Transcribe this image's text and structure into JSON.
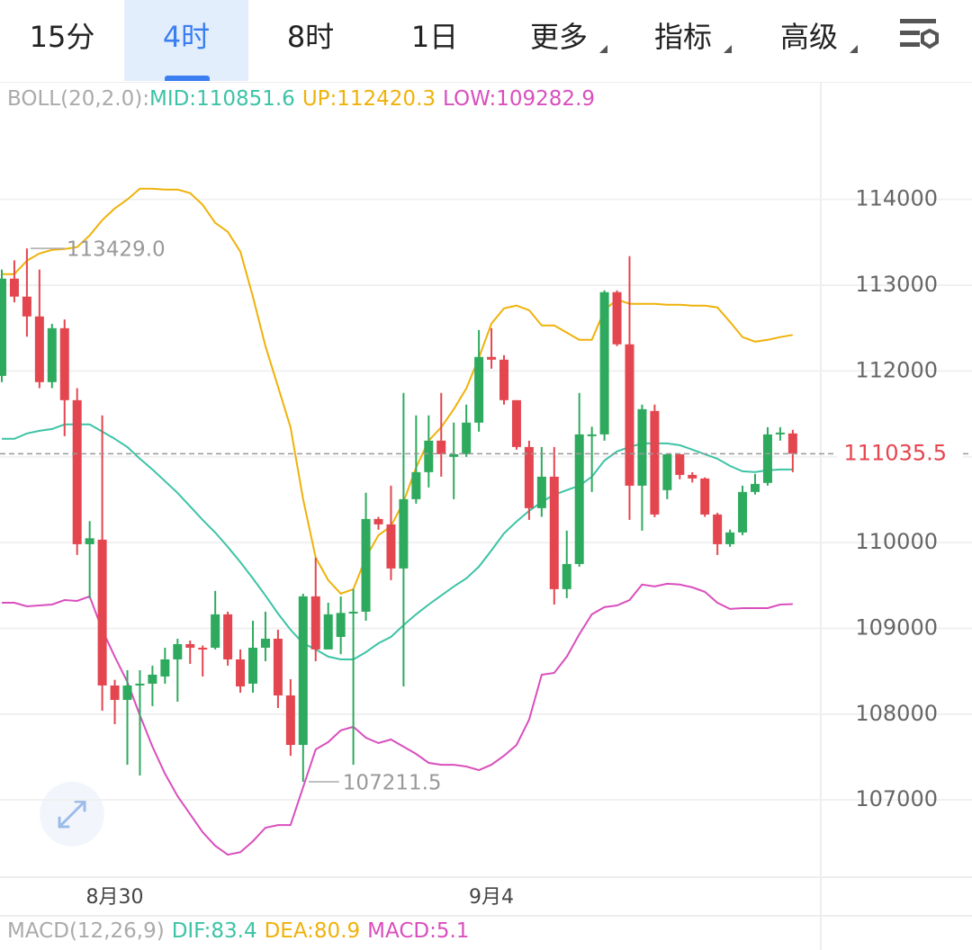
{
  "tabs": [
    "15分",
    "4时",
    "8时",
    "1日",
    "更多",
    "指标",
    "高级"
  ],
  "chart_data": {
    "type": "candlestick",
    "legend_title": "BOLL(20,2.0):",
    "categories": [
      null,
      null,
      null,
      null,
      null,
      null,
      null,
      null,
      null,
      "8月30",
      null,
      null,
      null,
      null,
      null,
      null,
      null,
      null,
      null,
      null,
      null,
      null,
      null,
      null,
      null,
      null,
      null,
      null,
      null,
      null,
      null,
      null,
      null,
      null,
      null,
      null,
      null,
      null,
      null,
      "9月4",
      null,
      null,
      null,
      null,
      null,
      null,
      null,
      null,
      null,
      null,
      null,
      null,
      null,
      null,
      null,
      null,
      null,
      null,
      null,
      null,
      null,
      null,
      null,
      null
    ],
    "up_color": "#2eaa5e",
    "down_color": "#e4464f",
    "candles": {
      "open": [
        111943,
        113077,
        112867,
        112636,
        111870,
        112499,
        111660,
        109981,
        110034,
        108334,
        108166,
        108334,
        108355,
        108439,
        108638,
        108816,
        108774,
        108774,
        109163,
        108638,
        108355,
        108774,
        108879,
        108218,
        107641,
        109373,
        108754,
        108900,
        109173,
        109194,
        110275,
        110212,
        109698,
        110506,
        110821,
        111188,
        110999,
        111030,
        111398,
        112164,
        112132,
        111660,
        111114,
        110401,
        110768,
        109457,
        109750,
        111240,
        111261,
        112919,
        112311,
        110663,
        111534,
        110611,
        111030,
        110789,
        110747,
        110327,
        109981,
        110118,
        110590,
        110695,
        111261,
        111272
      ],
      "high": [
        113182,
        113290,
        113429,
        113182,
        112550,
        112600,
        111800,
        110250,
        111482,
        108400,
        108512,
        108512,
        108565,
        108774,
        108879,
        108858,
        108800,
        109436,
        109194,
        108754,
        109089,
        109194,
        108984,
        108407,
        109404,
        109824,
        109299,
        109370,
        109457,
        110580,
        110300,
        110663,
        111744,
        111482,
        111482,
        111744,
        111398,
        111608,
        112478,
        112499,
        112185,
        111660,
        111188,
        111114,
        111114,
        110139,
        111744,
        111350,
        112940,
        112940,
        113339,
        111608,
        111608,
        111030,
        111030,
        110820,
        110760,
        110348,
        110150,
        110663,
        110800,
        111345,
        111345,
        111314
      ],
      "low": [
        111870,
        112800,
        112400,
        111800,
        111800,
        111240,
        109855,
        109350,
        108040,
        107883,
        107410,
        107285,
        108093,
        108355,
        108145,
        108586,
        108439,
        108754,
        108565,
        108250,
        108250,
        108617,
        108072,
        107515,
        107211.5,
        108617,
        108754,
        108700,
        107410,
        109089,
        110150,
        109562,
        108323,
        110453,
        110642,
        110768,
        110506,
        110999,
        111293,
        112027,
        111608,
        111083,
        110265,
        110300,
        109278,
        109352,
        109719,
        110590,
        111188,
        112290,
        110265,
        110139,
        110296,
        110506,
        110737,
        110700,
        110300,
        109855,
        109950,
        110086,
        110560,
        110663,
        111188,
        110821
      ],
      "close": [
        113077,
        112867,
        112636,
        111870,
        112499,
        111660,
        109981,
        110050,
        108334,
        108166,
        108334,
        108355,
        108460,
        108638,
        108816,
        108774,
        108754,
        109163,
        108638,
        108323,
        108774,
        108879,
        108218,
        107641,
        109373,
        108754,
        109163,
        109180,
        109194,
        110275,
        110212,
        109698,
        110506,
        110821,
        111188,
        111030,
        111030,
        111398,
        112164,
        112132,
        111660,
        111114,
        110401,
        110768,
        109457,
        109750,
        111261,
        111261,
        112919,
        112311,
        110663,
        111555,
        110327,
        111030,
        110789,
        110747,
        110327,
        109981,
        110118,
        110590,
        110684,
        111261,
        111282,
        111035.5
      ]
    },
    "series": [
      {
        "name": "MID:",
        "color": "#3cc3a6",
        "values": [
          111209,
          111209,
          111272,
          111303,
          111324,
          111377,
          111377,
          111377,
          111293,
          111209,
          111114,
          110978,
          110852,
          110716,
          110579,
          110422,
          110264,
          110118,
          109950,
          109771,
          109582,
          109383,
          109173,
          108984,
          108827,
          108754,
          108670,
          108638,
          108638,
          108722,
          108827,
          108900,
          109037,
          109163,
          109278,
          109383,
          109488,
          109582,
          109719,
          109908,
          110107,
          110244,
          110369,
          110474,
          110558,
          110611,
          110663,
          110768,
          110957,
          111062,
          111114,
          111156,
          111156,
          111156,
          111135,
          111083,
          111030,
          110978,
          110894,
          110831,
          110821,
          110842,
          110852,
          110851.6
        ]
      },
      {
        "name": "UP:",
        "color": "#efb20a",
        "values": [
          113129,
          113129,
          113286,
          113370,
          113412,
          113423,
          113444,
          113580,
          113759,
          113895,
          114000,
          114126,
          114126,
          114115,
          114115,
          114073,
          113937,
          113727,
          113622,
          113391,
          112867,
          112290,
          111817,
          111345,
          110506,
          109824,
          109562,
          109404,
          109457,
          109824,
          110086,
          110191,
          110474,
          110873,
          111188,
          111345,
          111555,
          111796,
          112153,
          112552,
          112730,
          112762,
          112709,
          112531,
          112531,
          112447,
          112363,
          112363,
          112709,
          112835,
          112783,
          112783,
          112783,
          112772,
          112772,
          112762,
          112762,
          112741,
          112573,
          112395,
          112342,
          112363,
          112395,
          112420.3
        ]
      },
      {
        "name": "LOW:",
        "color": "#d94fbd",
        "values": [
          109299,
          109299,
          109257,
          109267,
          109278,
          109330,
          109320,
          109373,
          108984,
          108670,
          108376,
          107988,
          107621,
          107306,
          107044,
          106833,
          106623,
          106466,
          106361,
          106392,
          106518,
          106676,
          106707,
          106707,
          107148,
          107589,
          107674,
          107810,
          107852,
          107726,
          107663,
          107705,
          107621,
          107537,
          107432,
          107410,
          107410,
          107390,
          107347,
          107410,
          107515,
          107641,
          107935,
          108460,
          108481,
          108670,
          108932,
          109163,
          109247,
          109267,
          109330,
          109510,
          109488,
          109520,
          109510,
          109478,
          109425,
          109299,
          109226,
          109236,
          109236,
          109236,
          109278,
          109282.9
        ]
      }
    ],
    "ylim": [
      106100,
      115360
    ],
    "yticks": [
      107000,
      108000,
      109000,
      110000,
      111000,
      112000,
      113000,
      114000
    ],
    "hidden_tick_labels": [
      111000
    ],
    "grid": true,
    "annotations": {
      "max": {
        "value": 113429,
        "label": "113429.0"
      },
      "min": 107211.5
    },
    "macd": {
      "title": "MACD(12,26,9)",
      "items": [
        {
          "name": "DIF:",
          "value": 83.4,
          "color": "#3cc3a6"
        },
        {
          "name": "DEA:",
          "value": 80.9,
          "color": "#efb20a"
        },
        {
          "name": "MACD:",
          "value": 5.1,
          "color": "#d94fbd"
        }
      ]
    }
  }
}
